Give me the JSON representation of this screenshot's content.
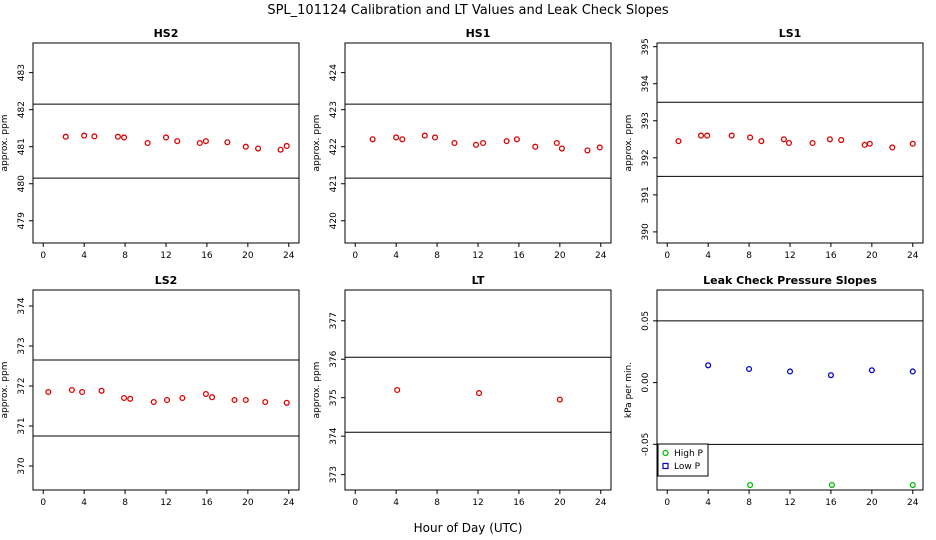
{
  "figure": {
    "title": "SPL_101124  Calibration and LT Values and Leak Check Slopes",
    "xlabel": "Hour of Day (UTC)"
  },
  "chart_data": [
    {
      "type": "scatter",
      "title": "HS2",
      "ylabel": "approx. ppm",
      "xlim": [
        -1,
        25
      ],
      "ylim": [
        478.4,
        483.8
      ],
      "xticks": [
        "0",
        "4",
        "8",
        "12",
        "16",
        "20",
        "24"
      ],
      "yticks": [
        "479",
        "480",
        "481",
        "482",
        "483"
      ],
      "hlines": [
        482.15,
        480.15
      ],
      "series": [
        {
          "name": "HS2",
          "color": "#dd0000",
          "x": [
            2.2,
            4.0,
            5.0,
            7.3,
            7.9,
            10.2,
            12.0,
            13.1,
            15.3,
            15.9,
            18.0,
            19.8,
            21.0,
            23.2,
            23.8
          ],
          "y": [
            481.27,
            481.3,
            481.28,
            481.27,
            481.25,
            481.1,
            481.25,
            481.15,
            481.1,
            481.15,
            481.12,
            481.0,
            480.95,
            480.92,
            481.02
          ]
        }
      ]
    },
    {
      "type": "scatter",
      "title": "HS1",
      "ylabel": "approx. ppm",
      "xlim": [
        -1,
        25
      ],
      "ylim": [
        419.4,
        424.8
      ],
      "xticks": [
        "0",
        "4",
        "8",
        "12",
        "16",
        "20",
        "24"
      ],
      "yticks": [
        "420",
        "421",
        "422",
        "423",
        "424"
      ],
      "hlines": [
        423.15,
        421.15
      ],
      "series": [
        {
          "name": "HS1",
          "color": "#dd0000",
          "x": [
            1.7,
            4.0,
            4.6,
            6.8,
            7.8,
            9.7,
            11.8,
            12.5,
            14.8,
            15.8,
            17.6,
            19.7,
            20.2,
            22.7,
            23.9
          ],
          "y": [
            422.2,
            422.25,
            422.2,
            422.3,
            422.25,
            422.1,
            422.05,
            422.1,
            422.15,
            422.2,
            422.0,
            422.1,
            421.95,
            421.9,
            421.98
          ]
        }
      ]
    },
    {
      "type": "scatter",
      "title": "LS1",
      "ylabel": "approx. ppm",
      "xlim": [
        -1,
        25
      ],
      "ylim": [
        389.7,
        395.1
      ],
      "xticks": [
        "0",
        "4",
        "8",
        "12",
        "16",
        "20",
        "24"
      ],
      "yticks": [
        "390",
        "391",
        "392",
        "393",
        "394",
        "395"
      ],
      "hlines": [
        393.5,
        391.5
      ],
      "series": [
        {
          "name": "LS1",
          "color": "#dd0000",
          "x": [
            1.1,
            3.3,
            3.9,
            6.3,
            8.1,
            9.2,
            11.4,
            11.9,
            14.2,
            15.9,
            17.0,
            19.3,
            19.8,
            22.0,
            24.0
          ],
          "y": [
            392.45,
            392.6,
            392.6,
            392.6,
            392.55,
            392.45,
            392.5,
            392.4,
            392.4,
            392.5,
            392.48,
            392.35,
            392.38,
            392.28,
            392.38
          ]
        }
      ]
    },
    {
      "type": "scatter",
      "title": "LS2",
      "ylabel": "approx. ppm",
      "xlim": [
        -1,
        25
      ],
      "ylim": [
        369.4,
        374.4
      ],
      "xticks": [
        "0",
        "4",
        "8",
        "12",
        "16",
        "20",
        "24"
      ],
      "yticks": [
        "370",
        "371",
        "372",
        "373",
        "374"
      ],
      "hlines": [
        372.65,
        370.75
      ],
      "series": [
        {
          "name": "LS2",
          "color": "#dd0000",
          "x": [
            0.5,
            2.8,
            3.8,
            5.7,
            7.9,
            8.5,
            10.8,
            12.1,
            13.6,
            15.9,
            16.5,
            18.7,
            19.8,
            21.7,
            23.8
          ],
          "y": [
            371.85,
            371.9,
            371.85,
            371.88,
            371.7,
            371.68,
            371.6,
            371.65,
            371.7,
            371.8,
            371.72,
            371.65,
            371.65,
            371.6,
            371.58
          ]
        }
      ]
    },
    {
      "type": "scatter",
      "title": "LT",
      "ylabel": "approx. ppm",
      "xlim": [
        -1,
        25
      ],
      "ylim": [
        372.6,
        377.8
      ],
      "xticks": [
        "0",
        "4",
        "8",
        "12",
        "16",
        "20",
        "24"
      ],
      "yticks": [
        "373",
        "374",
        "375",
        "376",
        "377"
      ],
      "hlines": [
        376.05,
        374.1
      ],
      "series": [
        {
          "name": "LT",
          "color": "#dd0000",
          "x": [
            4.1,
            12.1,
            20.0
          ],
          "y": [
            375.2,
            375.12,
            374.95
          ]
        }
      ]
    },
    {
      "type": "scatter",
      "title": "Leak Check Pressure Slopes",
      "ylabel": "kPa per min.",
      "xlim": [
        -1,
        25
      ],
      "ylim": [
        -0.087,
        0.075
      ],
      "xticks": [
        "0",
        "4",
        "8",
        "12",
        "16",
        "20",
        "24"
      ],
      "yticks": [
        "-0.05",
        "0.00",
        "0.05"
      ],
      "hlines": [
        0.05,
        -0.05
      ],
      "legend": {
        "position": "bottom-left"
      },
      "series": [
        {
          "name": "High P",
          "color": "#00bb00",
          "marker": "circle",
          "x": [
            8.1,
            16.1,
            24.0
          ],
          "y": [
            -0.083,
            -0.083,
            -0.083
          ]
        },
        {
          "name": "Low P",
          "color": "#0000cc",
          "marker": "circle",
          "x": [
            4.0,
            8.0,
            12.0,
            16.0,
            20.0,
            24.0
          ],
          "y": [
            0.014,
            0.011,
            0.009,
            0.006,
            0.01,
            0.009
          ]
        }
      ]
    }
  ]
}
